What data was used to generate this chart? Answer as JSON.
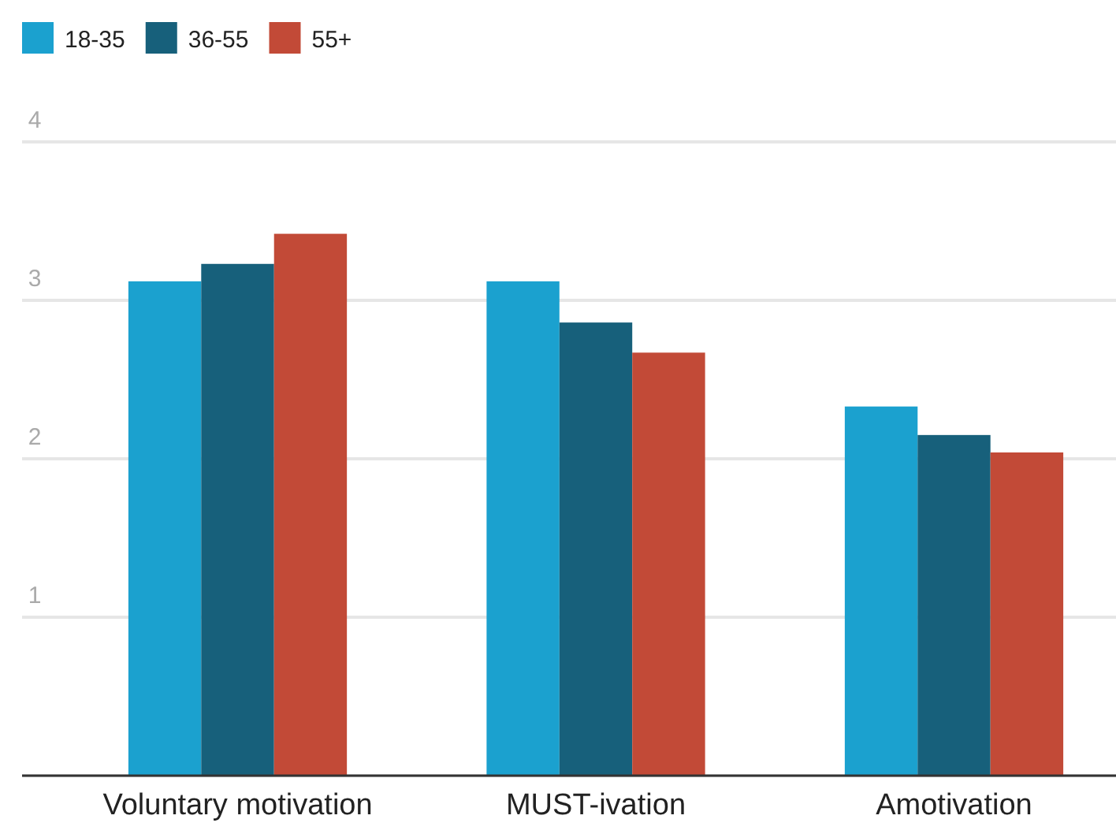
{
  "chart_data": {
    "type": "bar",
    "categories": [
      "Voluntary motivation",
      "MUST-ivation",
      "Amotivation"
    ],
    "series": [
      {
        "name": "18-35",
        "color": "#1ba1cf",
        "values": [
          3.12,
          3.12,
          2.33
        ]
      },
      {
        "name": "36-55",
        "color": "#17607b",
        "values": [
          3.23,
          2.86,
          2.15
        ]
      },
      {
        "name": "55+",
        "color": "#c24a37",
        "values": [
          3.42,
          2.67,
          2.04
        ]
      }
    ],
    "ylim": [
      0,
      4
    ],
    "yticks": [
      {
        "value": 0,
        "label": null
      },
      1,
      2,
      3,
      4
    ],
    "grid": "y",
    "legend": "top left"
  }
}
